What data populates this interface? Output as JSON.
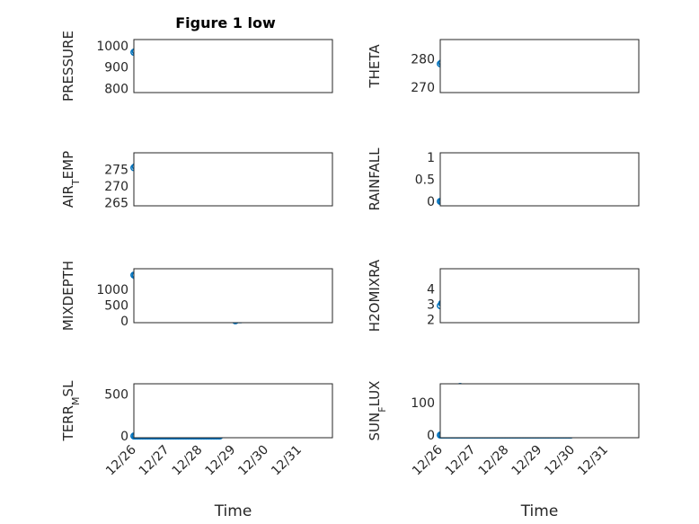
{
  "figure": {
    "title": "Figure 1 low"
  },
  "colors": {
    "marker": "#0072BD",
    "axis": "#262626",
    "grid": "#b8b8b8"
  },
  "chart_data": [
    {
      "type": "scatter",
      "name": "PRESSURE",
      "title": "Figure 1 low",
      "ylabel": "PRESSURE",
      "xlabel": "",
      "xlim": [
        0,
        6
      ],
      "ylim": [
        780,
        1030
      ],
      "yticks": [
        800,
        900,
        1000
      ],
      "yticklabels": [
        "800",
        "900",
        "1000"
      ],
      "xticks": [
        0,
        1,
        2,
        3,
        4,
        5
      ],
      "xticklabels": [],
      "anchors": [
        [
          0,
          970
        ],
        [
          0.5,
          958
        ],
        [
          1,
          975
        ],
        [
          1.5,
          985
        ],
        [
          2,
          995
        ],
        [
          2.3,
          1000
        ],
        [
          2.55,
          990
        ],
        [
          2.75,
          985
        ],
        [
          2.8,
          950
        ],
        [
          2.9,
          820
        ],
        [
          3.0,
          810
        ],
        [
          3.1,
          870
        ],
        [
          3.2,
          960
        ],
        [
          3.35,
          990
        ],
        [
          3.55,
          975
        ],
        [
          3.8,
          935
        ],
        [
          3.95,
          910
        ]
      ],
      "spread": 6
    },
    {
      "type": "scatter",
      "name": "THETA",
      "ylabel": "THETA",
      "xlabel": "",
      "xlim": [
        0,
        6
      ],
      "ylim": [
        268,
        287
      ],
      "yticks": [
        270,
        280
      ],
      "yticklabels": [
        "270",
        "280"
      ],
      "xticks": [
        0,
        1,
        2,
        3,
        4,
        5
      ],
      "xticklabels": [],
      "anchors": [
        [
          0,
          278.3
        ],
        [
          0.5,
          278.4
        ],
        [
          1,
          278.6
        ],
        [
          1.5,
          279
        ],
        [
          2,
          279.5
        ],
        [
          2.5,
          279.9
        ],
        [
          2.75,
          280.5
        ],
        [
          2.9,
          283.5
        ],
        [
          3.1,
          285
        ],
        [
          3.25,
          282
        ],
        [
          3.4,
          275
        ],
        [
          3.6,
          274
        ],
        [
          3.8,
          273.5
        ],
        [
          3.95,
          272
        ]
      ],
      "spread": 0.4
    },
    {
      "type": "scatter",
      "name": "AIR_TEMP",
      "ylabel": "AIR_TEMP",
      "xlabel": "",
      "xlim": [
        0,
        6
      ],
      "ylim": [
        264,
        280
      ],
      "yticks": [
        265,
        270,
        275
      ],
      "yticklabels": [
        "265",
        "270",
        "275"
      ],
      "xticks": [
        0,
        1,
        2,
        3,
        4,
        5
      ],
      "xticklabels": [],
      "anchors": [
        [
          0,
          275.5
        ],
        [
          0.5,
          275.3
        ],
        [
          1,
          276.5
        ],
        [
          1.5,
          277
        ],
        [
          1.8,
          277.5
        ],
        [
          2.1,
          278.5
        ],
        [
          2.5,
          278.5
        ],
        [
          2.75,
          278
        ],
        [
          2.85,
          272
        ],
        [
          2.95,
          268
        ],
        [
          3.05,
          267
        ],
        [
          3.15,
          270
        ],
        [
          3.3,
          275
        ],
        [
          3.5,
          273
        ],
        [
          3.7,
          272
        ],
        [
          3.85,
          268
        ],
        [
          3.95,
          265
        ]
      ],
      "spread": 0.4
    },
    {
      "type": "scatter",
      "name": "RAINFALL",
      "ylabel": "RAINFALL",
      "xlabel": "",
      "xlim": [
        0,
        6
      ],
      "ylim": [
        -0.1,
        1.1
      ],
      "yticks": [
        0,
        0.5,
        1
      ],
      "yticklabels": [
        "0",
        "0.5",
        "1"
      ],
      "xticks": [
        0,
        1,
        2,
        3,
        4,
        5
      ],
      "xticklabels": [],
      "baseline": {
        "x0": 0,
        "x1": 3.95,
        "y": 0
      },
      "points": [
        [
          2.5,
          0.3
        ],
        [
          2.8,
          0.3
        ],
        [
          2.85,
          1.0
        ],
        [
          2.9,
          0.3
        ],
        [
          2.95,
          0.3
        ],
        [
          3.35,
          0.1
        ],
        [
          3.45,
          0.3
        ],
        [
          3.5,
          0.3
        ],
        [
          3.6,
          0.3
        ],
        [
          3.65,
          0.6
        ],
        [
          3.7,
          0.7
        ],
        [
          3.75,
          0.5
        ],
        [
          3.8,
          0.3
        ],
        [
          3.85,
          0.3
        ],
        [
          3.9,
          0.6
        ],
        [
          3.95,
          1.0
        ]
      ]
    },
    {
      "type": "scatter",
      "name": "MIXDEPTH",
      "ylabel": "MIXDEPTH",
      "xlabel": "",
      "xlim": [
        0,
        6
      ],
      "ylim": [
        -50,
        1650
      ],
      "yticks": [
        0,
        500,
        1000
      ],
      "yticklabels": [
        "0",
        "500",
        "1000"
      ],
      "xticks": [
        0,
        1,
        2,
        3,
        4,
        5
      ],
      "xticklabels": [],
      "anchors": [
        [
          0,
          1450
        ],
        [
          0.25,
          1200
        ],
        [
          0.5,
          900
        ],
        [
          0.7,
          950
        ],
        [
          1,
          1100
        ],
        [
          1.3,
          1200
        ],
        [
          1.5,
          1150
        ],
        [
          1.7,
          1050
        ],
        [
          1.9,
          1100
        ],
        [
          2.05,
          850
        ],
        [
          2.3,
          950
        ],
        [
          2.6,
          1200
        ],
        [
          2.75,
          1250
        ],
        [
          2.85,
          500
        ],
        [
          2.95,
          150
        ],
        [
          3.1,
          20
        ],
        [
          3.3,
          100
        ],
        [
          3.5,
          150
        ],
        [
          3.7,
          400
        ],
        [
          3.8,
          300
        ],
        [
          3.95,
          650
        ]
      ],
      "spread": 40
    },
    {
      "type": "scatter",
      "name": "H2OMIXRA",
      "ylabel": "H2OMIXRA",
      "xlabel": "",
      "xlim": [
        0,
        6
      ],
      "ylim": [
        1.8,
        5.3
      ],
      "yticks": [
        2,
        3,
        4
      ],
      "yticklabels": [
        "2",
        "3",
        "4"
      ],
      "xticks": [
        0,
        1,
        2,
        3,
        4,
        5
      ],
      "xticklabels": [],
      "anchors": [
        [
          0,
          2.9
        ],
        [
          0.3,
          3.4
        ],
        [
          0.7,
          3.7
        ],
        [
          0.8,
          3.2
        ],
        [
          1.0,
          3.1
        ],
        [
          1.4,
          3.5
        ],
        [
          1.8,
          4.0
        ],
        [
          2.1,
          4.5
        ],
        [
          2.2,
          5.0
        ],
        [
          2.6,
          5.0
        ],
        [
          2.75,
          4.9
        ],
        [
          2.8,
          4.1
        ],
        [
          2.85,
          3.0
        ],
        [
          3.05,
          2.8
        ],
        [
          3.3,
          2.9
        ],
        [
          3.5,
          3.1
        ],
        [
          3.65,
          3.2
        ],
        [
          3.8,
          2.8
        ],
        [
          3.95,
          2.2
        ]
      ],
      "spread": 0.08
    },
    {
      "type": "scatter",
      "name": "TERR_MSL",
      "ylabel": "TERR_MSL",
      "xlabel": "Time",
      "xlim": [
        0,
        6
      ],
      "ylim": [
        -20,
        620
      ],
      "yticks": [
        0,
        500
      ],
      "yticklabels": [
        "0",
        "500"
      ],
      "xticks": [
        0,
        1,
        2,
        3,
        4,
        5
      ],
      "xticklabels": [
        "12/26",
        "12/27",
        "12/28",
        "12/29",
        "12/30",
        "12/31"
      ],
      "baseline": {
        "x0": 0,
        "x1": 2.6,
        "y": 0
      },
      "anchors": [
        [
          2.6,
          0
        ],
        [
          2.8,
          300
        ],
        [
          2.95,
          500
        ],
        [
          3.05,
          600
        ],
        [
          3.2,
          350
        ],
        [
          3.4,
          50
        ],
        [
          3.6,
          30
        ],
        [
          3.8,
          150
        ],
        [
          3.95,
          280
        ]
      ],
      "spread": 25
    },
    {
      "type": "scatter",
      "name": "SUN_FLUX",
      "ylabel": "SUN_FLUX",
      "xlabel": "Time",
      "xlim": [
        0,
        6
      ],
      "ylim": [
        -8,
        158
      ],
      "yticks": [
        0,
        100
      ],
      "yticklabels": [
        "0",
        "100"
      ],
      "xticks": [
        0,
        1,
        2,
        3,
        4,
        5
      ],
      "xticklabels": [
        "12/26",
        "12/27",
        "12/28",
        "12/29",
        "12/30",
        "12/31"
      ],
      "baseline": {
        "x0": 0,
        "x1": 3.95,
        "y": 0
      },
      "points": [
        [
          0.45,
          20
        ],
        [
          0.5,
          65
        ],
        [
          0.55,
          110
        ],
        [
          0.6,
          150
        ],
        [
          0.65,
          120
        ],
        [
          0.7,
          90
        ],
        [
          0.75,
          60
        ],
        [
          0.8,
          30
        ],
        [
          1.55,
          20
        ],
        [
          1.6,
          40
        ],
        [
          1.65,
          60
        ],
        [
          1.7,
          80
        ],
        [
          1.75,
          65
        ],
        [
          1.8,
          45
        ],
        [
          1.85,
          20
        ],
        [
          2.6,
          8
        ],
        [
          2.7,
          10
        ],
        [
          2.8,
          5
        ]
      ]
    }
  ]
}
